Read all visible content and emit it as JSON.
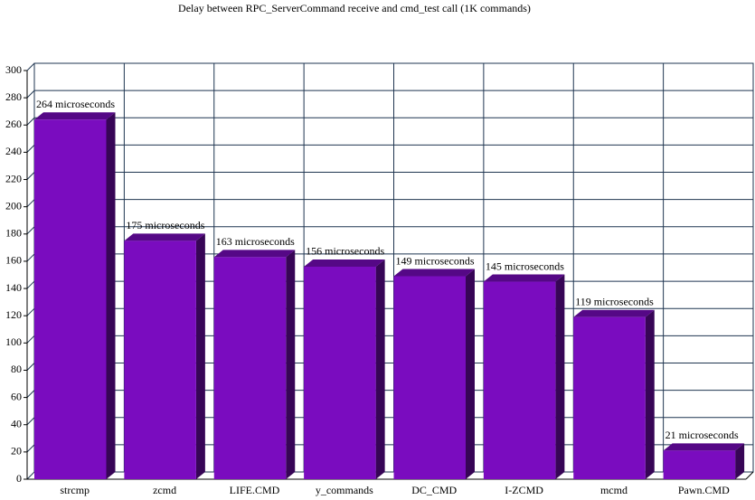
{
  "chart_data": {
    "type": "bar3d",
    "title": "Delay between RPC_ServerCommand receive and cmd_test call (1K commands)",
    "categories": [
      "strcmp",
      "zcmd",
      "LIFE.CMD",
      "y_commands",
      "DC_CMD",
      "I-ZCMD",
      "mcmd",
      "Pawn.CMD"
    ],
    "values": [
      264,
      175,
      163,
      156,
      149,
      145,
      119,
      21
    ],
    "value_labels": [
      "264 microseconds",
      "175 microseconds",
      "163 microseconds",
      "156 microseconds",
      "149 microseconds",
      "145 microseconds",
      "119 microseconds",
      "21 microseconds"
    ],
    "color": "#7a0cbf",
    "ylim": [
      0,
      300
    ],
    "yticks": [
      0,
      20,
      40,
      60,
      80,
      100,
      120,
      140,
      160,
      180,
      200,
      220,
      240,
      260,
      280,
      300
    ],
    "grid": true
  }
}
